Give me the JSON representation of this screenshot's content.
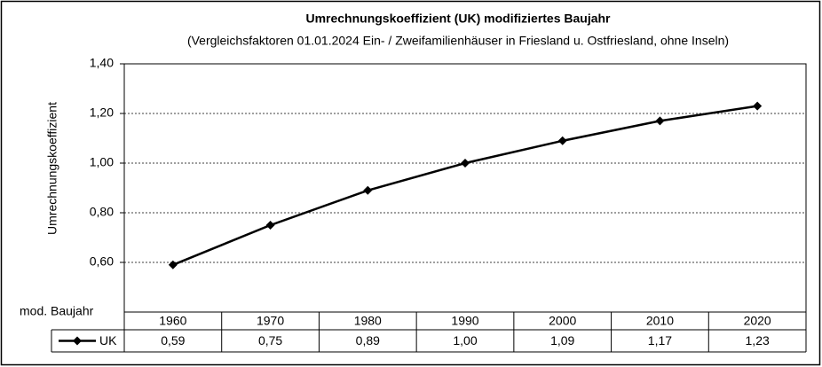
{
  "chart_data": {
    "type": "line",
    "title": "Umrechnungskoeffizient  (UK) modifiziertes  Baujahr",
    "subtitle": "(Vergleichsfaktoren 01.01.2024 Ein- / Zweifamilienhäuser  in Friesland u. Ostfriesland,  ohne Inseln)",
    "y_label": "Umrechnungskoeffizient",
    "x_label": "mod. Baujahr",
    "categories": [
      "1960",
      "1970",
      "1980",
      "1990",
      "2000",
      "2010",
      "2020"
    ],
    "series": [
      {
        "name": "UK",
        "color": "#000000",
        "values": [
          0.59,
          0.75,
          0.89,
          1.0,
          1.09,
          1.17,
          1.23
        ],
        "value_labels": [
          "0,59",
          "0,75",
          "0,89",
          "1,00",
          "1,09",
          "1,17",
          "1,23"
        ]
      }
    ],
    "ylim": [
      0.4,
      1.4
    ],
    "yticks": [
      {
        "value": 0.6,
        "label": "0,60"
      },
      {
        "value": 0.8,
        "label": "0,80"
      },
      {
        "value": 1.0,
        "label": "1,00"
      },
      {
        "value": 1.2,
        "label": "1,20"
      },
      {
        "value": 1.4,
        "label": "1,40"
      }
    ],
    "grid": true
  }
}
